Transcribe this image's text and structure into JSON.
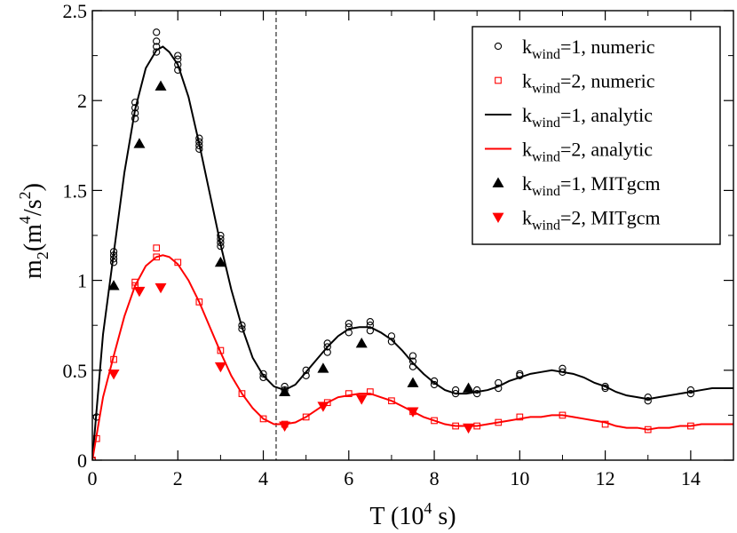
{
  "chart_data": {
    "type": "scatter",
    "xlabel": "T (10",
    "xlabel_sup": "4",
    "xlabel_tail": " s)",
    "ylabel": "m",
    "ylabel_sub": "2",
    "ylabel_unit": "(m",
    "ylabel_sup1": "4",
    "ylabel_mid": "/s",
    "ylabel_sup2": "2",
    "ylabel_tail": ")",
    "xlim": [
      0,
      15
    ],
    "ylim": [
      0,
      2.5
    ],
    "xticks": [
      0,
      2,
      4,
      6,
      8,
      10,
      12,
      14
    ],
    "yticks": [
      0,
      0.5,
      1,
      1.5,
      2,
      2.5
    ],
    "vline_x": 4.3,
    "legend_position": "top-right",
    "colors": {
      "black": "#000000",
      "red": "#ff0000"
    },
    "series": [
      {
        "name": "k_wind=1, numeric",
        "legend_main": "k",
        "legend_sub": "wind",
        "legend_rest": "=1, numeric",
        "marker": "circle-open",
        "color": "#000000",
        "points": [
          [
            0,
            0.0
          ],
          [
            0.1,
            0.24
          ],
          [
            0.5,
            1.1
          ],
          [
            0.5,
            1.12
          ],
          [
            0.5,
            1.14
          ],
          [
            0.5,
            1.16
          ],
          [
            1.0,
            1.9
          ],
          [
            1.0,
            1.93
          ],
          [
            1.0,
            1.96
          ],
          [
            1.0,
            1.99
          ],
          [
            1.5,
            2.27
          ],
          [
            1.5,
            2.3
          ],
          [
            1.5,
            2.33
          ],
          [
            1.5,
            2.38
          ],
          [
            2.0,
            2.17
          ],
          [
            2.0,
            2.2
          ],
          [
            2.0,
            2.23
          ],
          [
            2.0,
            2.25
          ],
          [
            2.5,
            1.73
          ],
          [
            2.5,
            1.75
          ],
          [
            2.5,
            1.77
          ],
          [
            2.5,
            1.79
          ],
          [
            3.0,
            1.19
          ],
          [
            3.0,
            1.21
          ],
          [
            3.0,
            1.23
          ],
          [
            3.0,
            1.25
          ],
          [
            3.5,
            0.73
          ],
          [
            3.5,
            0.75
          ],
          [
            4.0,
            0.46
          ],
          [
            4.0,
            0.48
          ],
          [
            4.5,
            0.39
          ],
          [
            4.5,
            0.41
          ],
          [
            5.0,
            0.47
          ],
          [
            5.0,
            0.5
          ],
          [
            5.5,
            0.6
          ],
          [
            5.5,
            0.63
          ],
          [
            5.5,
            0.65
          ],
          [
            6.0,
            0.71
          ],
          [
            6.0,
            0.74
          ],
          [
            6.0,
            0.76
          ],
          [
            6.5,
            0.72
          ],
          [
            6.5,
            0.75
          ],
          [
            6.5,
            0.77
          ],
          [
            7.0,
            0.66
          ],
          [
            7.0,
            0.69
          ],
          [
            7.5,
            0.52
          ],
          [
            7.5,
            0.55
          ],
          [
            7.5,
            0.58
          ],
          [
            8.0,
            0.42
          ],
          [
            8.0,
            0.44
          ],
          [
            8.5,
            0.37
          ],
          [
            8.5,
            0.39
          ],
          [
            9.0,
            0.37
          ],
          [
            9.0,
            0.39
          ],
          [
            9.5,
            0.4
          ],
          [
            9.5,
            0.43
          ],
          [
            10.0,
            0.47
          ],
          [
            10.0,
            0.48
          ],
          [
            11.0,
            0.49
          ],
          [
            11.0,
            0.51
          ],
          [
            12.0,
            0.4
          ],
          [
            12.0,
            0.41
          ],
          [
            13.0,
            0.33
          ],
          [
            13.0,
            0.35
          ],
          [
            14.0,
            0.37
          ],
          [
            14.0,
            0.39
          ]
        ]
      },
      {
        "name": "k_wind=2, numeric",
        "legend_main": "k",
        "legend_sub": "wind",
        "legend_rest": "=2, numeric",
        "marker": "square-open",
        "color": "#ff0000",
        "points": [
          [
            0,
            0.0
          ],
          [
            0.1,
            0.12
          ],
          [
            0.5,
            0.56
          ],
          [
            1.0,
            0.97
          ],
          [
            1.0,
            0.99
          ],
          [
            1.5,
            1.13
          ],
          [
            1.5,
            1.18
          ],
          [
            2.0,
            1.1
          ],
          [
            2.5,
            0.88
          ],
          [
            3.0,
            0.61
          ],
          [
            3.5,
            0.37
          ],
          [
            4.0,
            0.23
          ],
          [
            4.5,
            0.2
          ],
          [
            5.0,
            0.24
          ],
          [
            5.5,
            0.32
          ],
          [
            6.0,
            0.37
          ],
          [
            6.5,
            0.38
          ],
          [
            7.0,
            0.33
          ],
          [
            7.5,
            0.27
          ],
          [
            8.0,
            0.22
          ],
          [
            8.5,
            0.19
          ],
          [
            9.0,
            0.19
          ],
          [
            9.5,
            0.21
          ],
          [
            10.0,
            0.24
          ],
          [
            11.0,
            0.25
          ],
          [
            12.0,
            0.2
          ],
          [
            13.0,
            0.17
          ],
          [
            14.0,
            0.19
          ]
        ]
      },
      {
        "name": "k_wind=1, analytic",
        "legend_main": "k",
        "legend_sub": "wind",
        "legend_rest": "=1, analytic",
        "marker": "line",
        "color": "#000000",
        "points": [
          [
            0,
            0.0
          ],
          [
            0.25,
            0.7
          ],
          [
            0.5,
            1.15
          ],
          [
            0.75,
            1.6
          ],
          [
            1.0,
            1.95
          ],
          [
            1.25,
            2.18
          ],
          [
            1.5,
            2.28
          ],
          [
            1.65,
            2.3
          ],
          [
            1.8,
            2.27
          ],
          [
            2.0,
            2.2
          ],
          [
            2.25,
            2.02
          ],
          [
            2.5,
            1.76
          ],
          [
            2.75,
            1.48
          ],
          [
            3.0,
            1.2
          ],
          [
            3.25,
            0.95
          ],
          [
            3.5,
            0.74
          ],
          [
            3.75,
            0.57
          ],
          [
            4.0,
            0.47
          ],
          [
            4.25,
            0.41
          ],
          [
            4.5,
            0.39
          ],
          [
            4.75,
            0.42
          ],
          [
            5.0,
            0.49
          ],
          [
            5.25,
            0.56
          ],
          [
            5.5,
            0.63
          ],
          [
            5.75,
            0.69
          ],
          [
            6.0,
            0.73
          ],
          [
            6.25,
            0.74
          ],
          [
            6.5,
            0.74
          ],
          [
            6.75,
            0.71
          ],
          [
            7.0,
            0.67
          ],
          [
            7.25,
            0.61
          ],
          [
            7.5,
            0.54
          ],
          [
            7.75,
            0.48
          ],
          [
            8.0,
            0.43
          ],
          [
            8.25,
            0.39
          ],
          [
            8.5,
            0.37
          ],
          [
            8.75,
            0.37
          ],
          [
            9.0,
            0.38
          ],
          [
            9.25,
            0.39
          ],
          [
            9.5,
            0.41
          ],
          [
            9.75,
            0.44
          ],
          [
            10.0,
            0.46
          ],
          [
            10.25,
            0.48
          ],
          [
            10.5,
            0.49
          ],
          [
            10.75,
            0.5
          ],
          [
            11.0,
            0.49
          ],
          [
            11.25,
            0.48
          ],
          [
            11.5,
            0.46
          ],
          [
            11.75,
            0.43
          ],
          [
            12.0,
            0.41
          ],
          [
            12.25,
            0.38
          ],
          [
            12.5,
            0.36
          ],
          [
            12.75,
            0.35
          ],
          [
            13.0,
            0.34
          ],
          [
            13.25,
            0.35
          ],
          [
            13.5,
            0.36
          ],
          [
            13.75,
            0.37
          ],
          [
            14.0,
            0.38
          ],
          [
            14.25,
            0.39
          ],
          [
            14.5,
            0.4
          ],
          [
            14.75,
            0.4
          ],
          [
            15.0,
            0.4
          ]
        ]
      },
      {
        "name": "k_wind=2, analytic",
        "legend_main": "k",
        "legend_sub": "wind",
        "legend_rest": "=2, analytic",
        "marker": "line",
        "color": "#ff0000",
        "points": [
          [
            0,
            0.0
          ],
          [
            0.25,
            0.35
          ],
          [
            0.5,
            0.58
          ],
          [
            0.75,
            0.8
          ],
          [
            1.0,
            0.97
          ],
          [
            1.25,
            1.08
          ],
          [
            1.5,
            1.13
          ],
          [
            1.65,
            1.14
          ],
          [
            1.8,
            1.13
          ],
          [
            2.0,
            1.09
          ],
          [
            2.25,
            1.0
          ],
          [
            2.5,
            0.88
          ],
          [
            2.75,
            0.74
          ],
          [
            3.0,
            0.6
          ],
          [
            3.25,
            0.47
          ],
          [
            3.5,
            0.37
          ],
          [
            3.75,
            0.29
          ],
          [
            4.0,
            0.23
          ],
          [
            4.25,
            0.2
          ],
          [
            4.5,
            0.2
          ],
          [
            4.75,
            0.21
          ],
          [
            5.0,
            0.24
          ],
          [
            5.25,
            0.28
          ],
          [
            5.5,
            0.32
          ],
          [
            5.75,
            0.35
          ],
          [
            6.0,
            0.36
          ],
          [
            6.25,
            0.37
          ],
          [
            6.5,
            0.37
          ],
          [
            6.75,
            0.35
          ],
          [
            7.0,
            0.33
          ],
          [
            7.25,
            0.3
          ],
          [
            7.5,
            0.27
          ],
          [
            7.75,
            0.24
          ],
          [
            8.0,
            0.22
          ],
          [
            8.25,
            0.2
          ],
          [
            8.5,
            0.19
          ],
          [
            8.75,
            0.19
          ],
          [
            9.0,
            0.19
          ],
          [
            9.25,
            0.2
          ],
          [
            9.5,
            0.21
          ],
          [
            9.75,
            0.22
          ],
          [
            10.0,
            0.23
          ],
          [
            10.25,
            0.24
          ],
          [
            10.5,
            0.24
          ],
          [
            10.75,
            0.25
          ],
          [
            11.0,
            0.25
          ],
          [
            11.25,
            0.24
          ],
          [
            11.5,
            0.23
          ],
          [
            11.75,
            0.22
          ],
          [
            12.0,
            0.21
          ],
          [
            12.25,
            0.19
          ],
          [
            12.5,
            0.18
          ],
          [
            12.75,
            0.18
          ],
          [
            13.0,
            0.17
          ],
          [
            13.25,
            0.18
          ],
          [
            13.5,
            0.18
          ],
          [
            13.75,
            0.19
          ],
          [
            14.0,
            0.19
          ],
          [
            14.25,
            0.2
          ],
          [
            14.5,
            0.2
          ],
          [
            14.75,
            0.2
          ],
          [
            15.0,
            0.2
          ]
        ]
      },
      {
        "name": "k_wind=1, MITgcm",
        "legend_main": "k",
        "legend_sub": "wind",
        "legend_rest": "=1, MITgcm",
        "marker": "triangle-up-filled",
        "color": "#000000",
        "points": [
          [
            0.5,
            0.97
          ],
          [
            1.1,
            1.76
          ],
          [
            1.6,
            2.08
          ],
          [
            3.0,
            1.1
          ],
          [
            4.5,
            0.38
          ],
          [
            5.4,
            0.51
          ],
          [
            6.3,
            0.65
          ],
          [
            7.5,
            0.43
          ],
          [
            8.8,
            0.4
          ]
        ]
      },
      {
        "name": "k_wind=2, MITgcm",
        "legend_main": "k",
        "legend_sub": "wind",
        "legend_rest": "=2, MITgcm",
        "marker": "triangle-down-filled",
        "color": "#ff0000",
        "points": [
          [
            0.5,
            0.48
          ],
          [
            1.1,
            0.94
          ],
          [
            1.6,
            0.96
          ],
          [
            3.0,
            0.52
          ],
          [
            4.5,
            0.19
          ],
          [
            5.4,
            0.3
          ],
          [
            6.3,
            0.34
          ],
          [
            7.5,
            0.27
          ],
          [
            8.8,
            0.18
          ]
        ]
      }
    ]
  }
}
